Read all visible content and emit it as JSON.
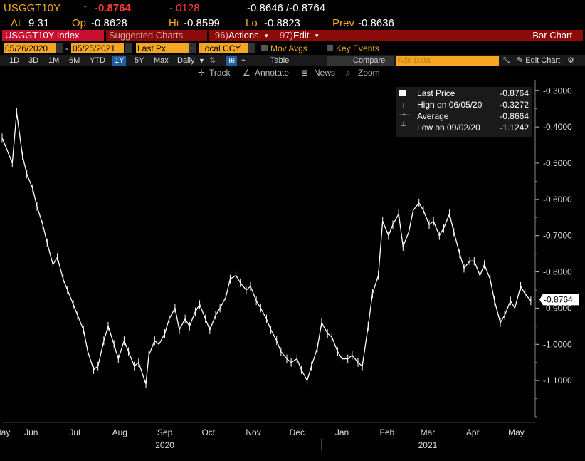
{
  "header": {
    "ticker": "USGGT10Y",
    "arrow": "↑",
    "last": "-0.8764",
    "change": "-.0128",
    "bid_ask": "-0.8646 /-0.8764",
    "time_label": "At",
    "time": "9:31",
    "open_label": "Op",
    "open": "-0.8628",
    "high_label": "Hi",
    "high": "-0.8599",
    "low_label": "Lo",
    "low": "-0.8823",
    "prev_label": "Prev",
    "prev": "-0.8636"
  },
  "toolbar": {
    "security": "USGGT10Y Index",
    "suggested": "Suggested Charts",
    "actions_num": "96)",
    "actions": "Actions",
    "edit_num": "97)",
    "edit": "Edit",
    "chart_type": "Bar Chart"
  },
  "settings": {
    "start_date": "05/26/2020",
    "end_date": "05/25/2021",
    "field": "Last Px",
    "currency": "Local CCY",
    "mov_avgs": "Mov Avgs",
    "key_events": "Key Events"
  },
  "periods": [
    "1D",
    "3D",
    "1M",
    "6M",
    "YTD",
    "1Y",
    "5Y",
    "Max"
  ],
  "selected_period": "1Y",
  "frequency": "Daily",
  "table_label": "Table",
  "compare_label": "Compare",
  "add_data_placeholder": "Add Data",
  "edit_chart": "Edit Chart",
  "tools": {
    "track": "Track",
    "annotate": "Annotate",
    "news": "News",
    "zoom": "Zoom"
  },
  "legend": {
    "last_price_label": "Last Price",
    "last_price": "-0.8764",
    "high_label": "High on 06/05/20",
    "high": "-0.3272",
    "average_label": "Average",
    "average": "-0.8664",
    "low_label": "Low on 09/02/20",
    "low": "-1.1242"
  },
  "colors": {
    "amber": "#f5a623",
    "red_accent": "#ff3b3b",
    "up_green": "#2ecc40",
    "bar_white": "#ffffff",
    "toolbar_red": "#c8102e"
  },
  "chart_data": {
    "type": "bar",
    "subtype": "ohlc",
    "ylim": [
      -1.2,
      -0.27
    ],
    "y_ticks": [
      "-0.3000",
      "-0.4000",
      "-0.5000",
      "-0.6000",
      "-0.7000",
      "-0.8000",
      "-0.9000",
      "-1.0000",
      "-1.1000"
    ],
    "y_tick_values": [
      -0.3,
      -0.4,
      -0.5,
      -0.6,
      -0.7,
      -0.8,
      -0.9,
      -1.0,
      -1.1
    ],
    "last_value_tag": "-0.8764",
    "last_value": -0.8764,
    "x_month_labels": [
      "May",
      "Jun",
      "Jul",
      "Aug",
      "Sep",
      "Oct",
      "Nov",
      "Dec",
      "Jan",
      "Feb",
      "Mar",
      "Apr",
      "May"
    ],
    "x_month_dates": [
      "2020-05-26",
      "2020-06-15",
      "2020-07-15",
      "2020-08-15",
      "2020-09-15",
      "2020-10-15",
      "2020-11-15",
      "2020-12-15",
      "2021-01-15",
      "2021-02-15",
      "2021-03-15",
      "2021-04-15",
      "2021-05-15"
    ],
    "x_year_labels": [
      "2020",
      "2021"
    ],
    "x_year_dates": [
      "2020-09-15",
      "2021-03-15"
    ],
    "x_range": [
      "2020-05-26",
      "2021-05-28"
    ],
    "series": [
      {
        "x": [
          "2020-05-26",
          "2020-06-02",
          "2020-06-05",
          "2020-06-09",
          "2020-06-12",
          "2020-06-16",
          "2020-06-19",
          "2020-06-23",
          "2020-06-26",
          "2020-06-30",
          "2020-07-03",
          "2020-07-07",
          "2020-07-10",
          "2020-07-14",
          "2020-07-17",
          "2020-07-21",
          "2020-07-24",
          "2020-07-28",
          "2020-07-31",
          "2020-08-04",
          "2020-08-07",
          "2020-08-11",
          "2020-08-14",
          "2020-08-18",
          "2020-08-21",
          "2020-08-25",
          "2020-08-28",
          "2020-09-02",
          "2020-09-04",
          "2020-09-08",
          "2020-09-11",
          "2020-09-15",
          "2020-09-18",
          "2020-09-22",
          "2020-09-25",
          "2020-09-29",
          "2020-10-02",
          "2020-10-06",
          "2020-10-09",
          "2020-10-13",
          "2020-10-16",
          "2020-10-20",
          "2020-10-23",
          "2020-10-27",
          "2020-10-30",
          "2020-11-03",
          "2020-11-06",
          "2020-11-10",
          "2020-11-13",
          "2020-11-17",
          "2020-11-20",
          "2020-11-24",
          "2020-11-27",
          "2020-12-01",
          "2020-12-04",
          "2020-12-08",
          "2020-12-11",
          "2020-12-15",
          "2020-12-18",
          "2020-12-22",
          "2020-12-25",
          "2020-12-29",
          "2021-01-01",
          "2021-01-05",
          "2021-01-08",
          "2021-01-12",
          "2021-01-15",
          "2021-01-19",
          "2021-01-22",
          "2021-01-26",
          "2021-01-29",
          "2021-02-02",
          "2021-02-05",
          "2021-02-09",
          "2021-02-12",
          "2021-02-16",
          "2021-02-19",
          "2021-02-23",
          "2021-02-26",
          "2021-03-02",
          "2021-03-05",
          "2021-03-09",
          "2021-03-12",
          "2021-03-16",
          "2021-03-19",
          "2021-03-23",
          "2021-03-26",
          "2021-03-30",
          "2021-04-02",
          "2021-04-06",
          "2021-04-09",
          "2021-04-13",
          "2021-04-16",
          "2021-04-20",
          "2021-04-23",
          "2021-04-27",
          "2021-04-30",
          "2021-05-04",
          "2021-05-07",
          "2021-05-11",
          "2021-05-14",
          "2021-05-18",
          "2021-05-21",
          "2021-05-25"
        ],
        "values": [
          -0.43,
          -0.5,
          -0.36,
          -0.48,
          -0.53,
          -0.57,
          -0.62,
          -0.67,
          -0.72,
          -0.78,
          -0.76,
          -0.82,
          -0.85,
          -0.89,
          -0.92,
          -0.96,
          -1.02,
          -1.07,
          -1.06,
          -0.99,
          -0.95,
          -1.0,
          -1.04,
          -0.99,
          -1.02,
          -1.06,
          -1.05,
          -1.11,
          -1.03,
          -0.99,
          -1.0,
          -0.97,
          -0.93,
          -0.9,
          -0.96,
          -0.93,
          -0.95,
          -0.91,
          -0.89,
          -0.93,
          -0.96,
          -0.92,
          -0.9,
          -0.87,
          -0.82,
          -0.81,
          -0.83,
          -0.85,
          -0.84,
          -0.88,
          -0.9,
          -0.93,
          -0.96,
          -0.99,
          -1.02,
          -1.04,
          -1.05,
          -1.04,
          -1.07,
          -1.1,
          -1.06,
          -1.01,
          -0.94,
          -0.97,
          -0.98,
          -1.02,
          -1.04,
          -1.04,
          -1.03,
          -1.05,
          -1.06,
          -0.95,
          -0.86,
          -0.81,
          -0.66,
          -0.7,
          -0.67,
          -0.64,
          -0.73,
          -0.69,
          -0.63,
          -0.61,
          -0.63,
          -0.67,
          -0.66,
          -0.7,
          -0.68,
          -0.64,
          -0.69,
          -0.75,
          -0.79,
          -0.77,
          -0.77,
          -0.81,
          -0.78,
          -0.82,
          -0.88,
          -0.94,
          -0.92,
          -0.88,
          -0.9,
          -0.84,
          -0.86,
          -0.88
        ]
      }
    ]
  }
}
